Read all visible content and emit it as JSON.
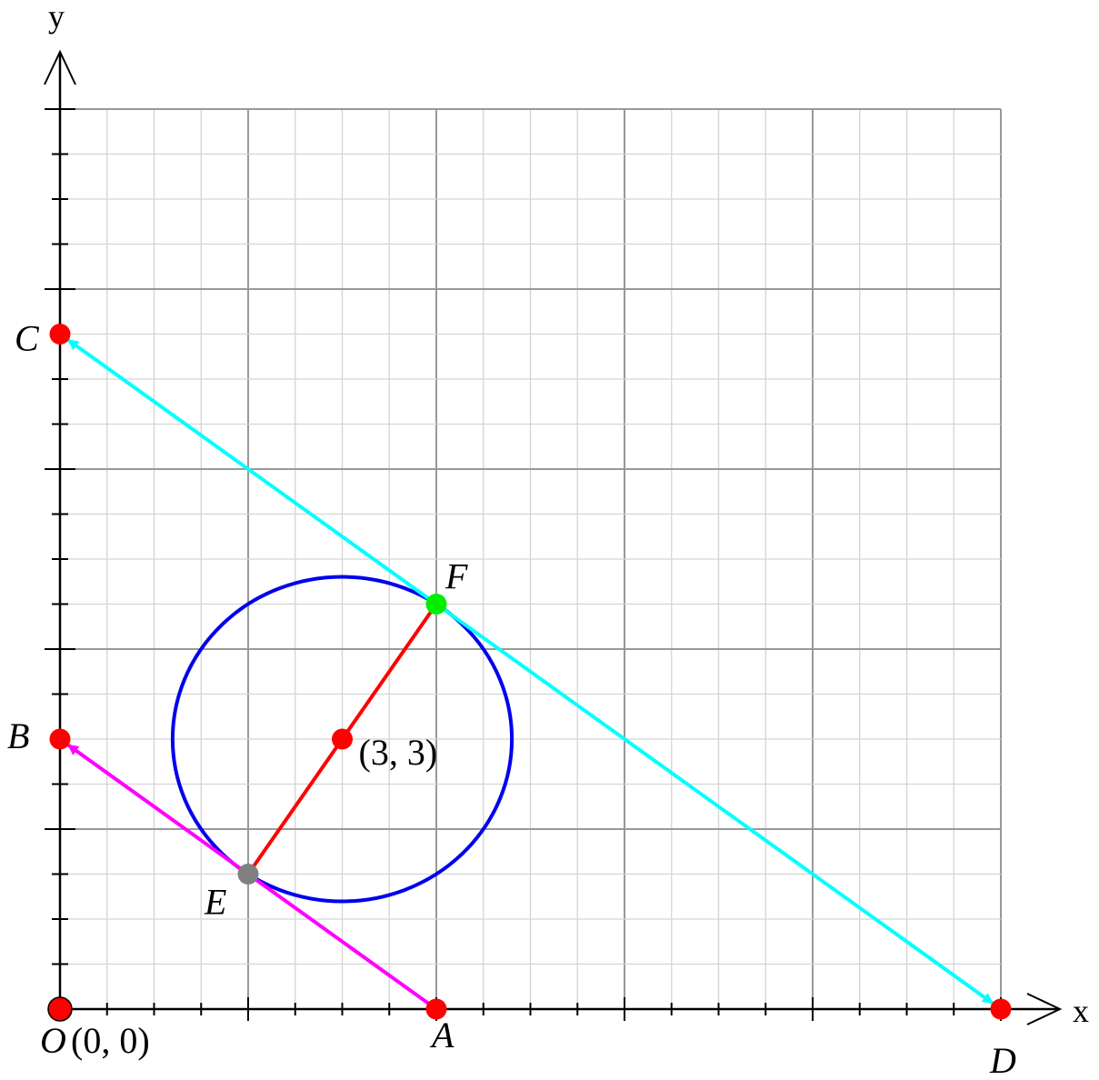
{
  "axes": {
    "x_label": "x",
    "y_label": "y",
    "xlim": [
      0,
      10
    ],
    "ylim": [
      0,
      10
    ],
    "major_step": 2,
    "minor_step": 0.5,
    "grid": true
  },
  "points": [
    {
      "id": "O",
      "label": "O",
      "x": 0,
      "y": 0,
      "color": "#ff0000",
      "coord_text": "(0, 0)"
    },
    {
      "id": "A",
      "label": "A",
      "x": 4,
      "y": 0,
      "color": "#ff0000"
    },
    {
      "id": "B",
      "label": "B",
      "x": 0,
      "y": 3,
      "color": "#ff0000"
    },
    {
      "id": "C",
      "label": "C",
      "x": 0,
      "y": 7.5,
      "color": "#ff0000"
    },
    {
      "id": "D",
      "label": "D",
      "x": 10,
      "y": 0,
      "color": "#ff0000"
    },
    {
      "id": "E",
      "label": "E",
      "x": 2,
      "y": 1.5,
      "color": "#808080"
    },
    {
      "id": "F",
      "label": "F",
      "x": 4,
      "y": 4.5,
      "color": "#00ee00"
    },
    {
      "id": "center",
      "label": "(3,  3)",
      "x": 3,
      "y": 3,
      "color": "#ff0000"
    }
  ],
  "circle": {
    "cx": 3,
    "cy": 3,
    "r": 1.8028,
    "color": "#0000ee"
  },
  "segments": [
    {
      "from": [
        4,
        0
      ],
      "to": [
        0,
        3
      ],
      "color": "#ff00ff",
      "arrow": "end"
    },
    {
      "from": [
        10,
        0
      ],
      "to": [
        0,
        7.5
      ],
      "color": "#00ffff",
      "arrow": "both"
    },
    {
      "from": [
        2,
        1.5
      ],
      "to": [
        4,
        4.5
      ],
      "color": "#ff0000",
      "arrow": "none"
    }
  ]
}
